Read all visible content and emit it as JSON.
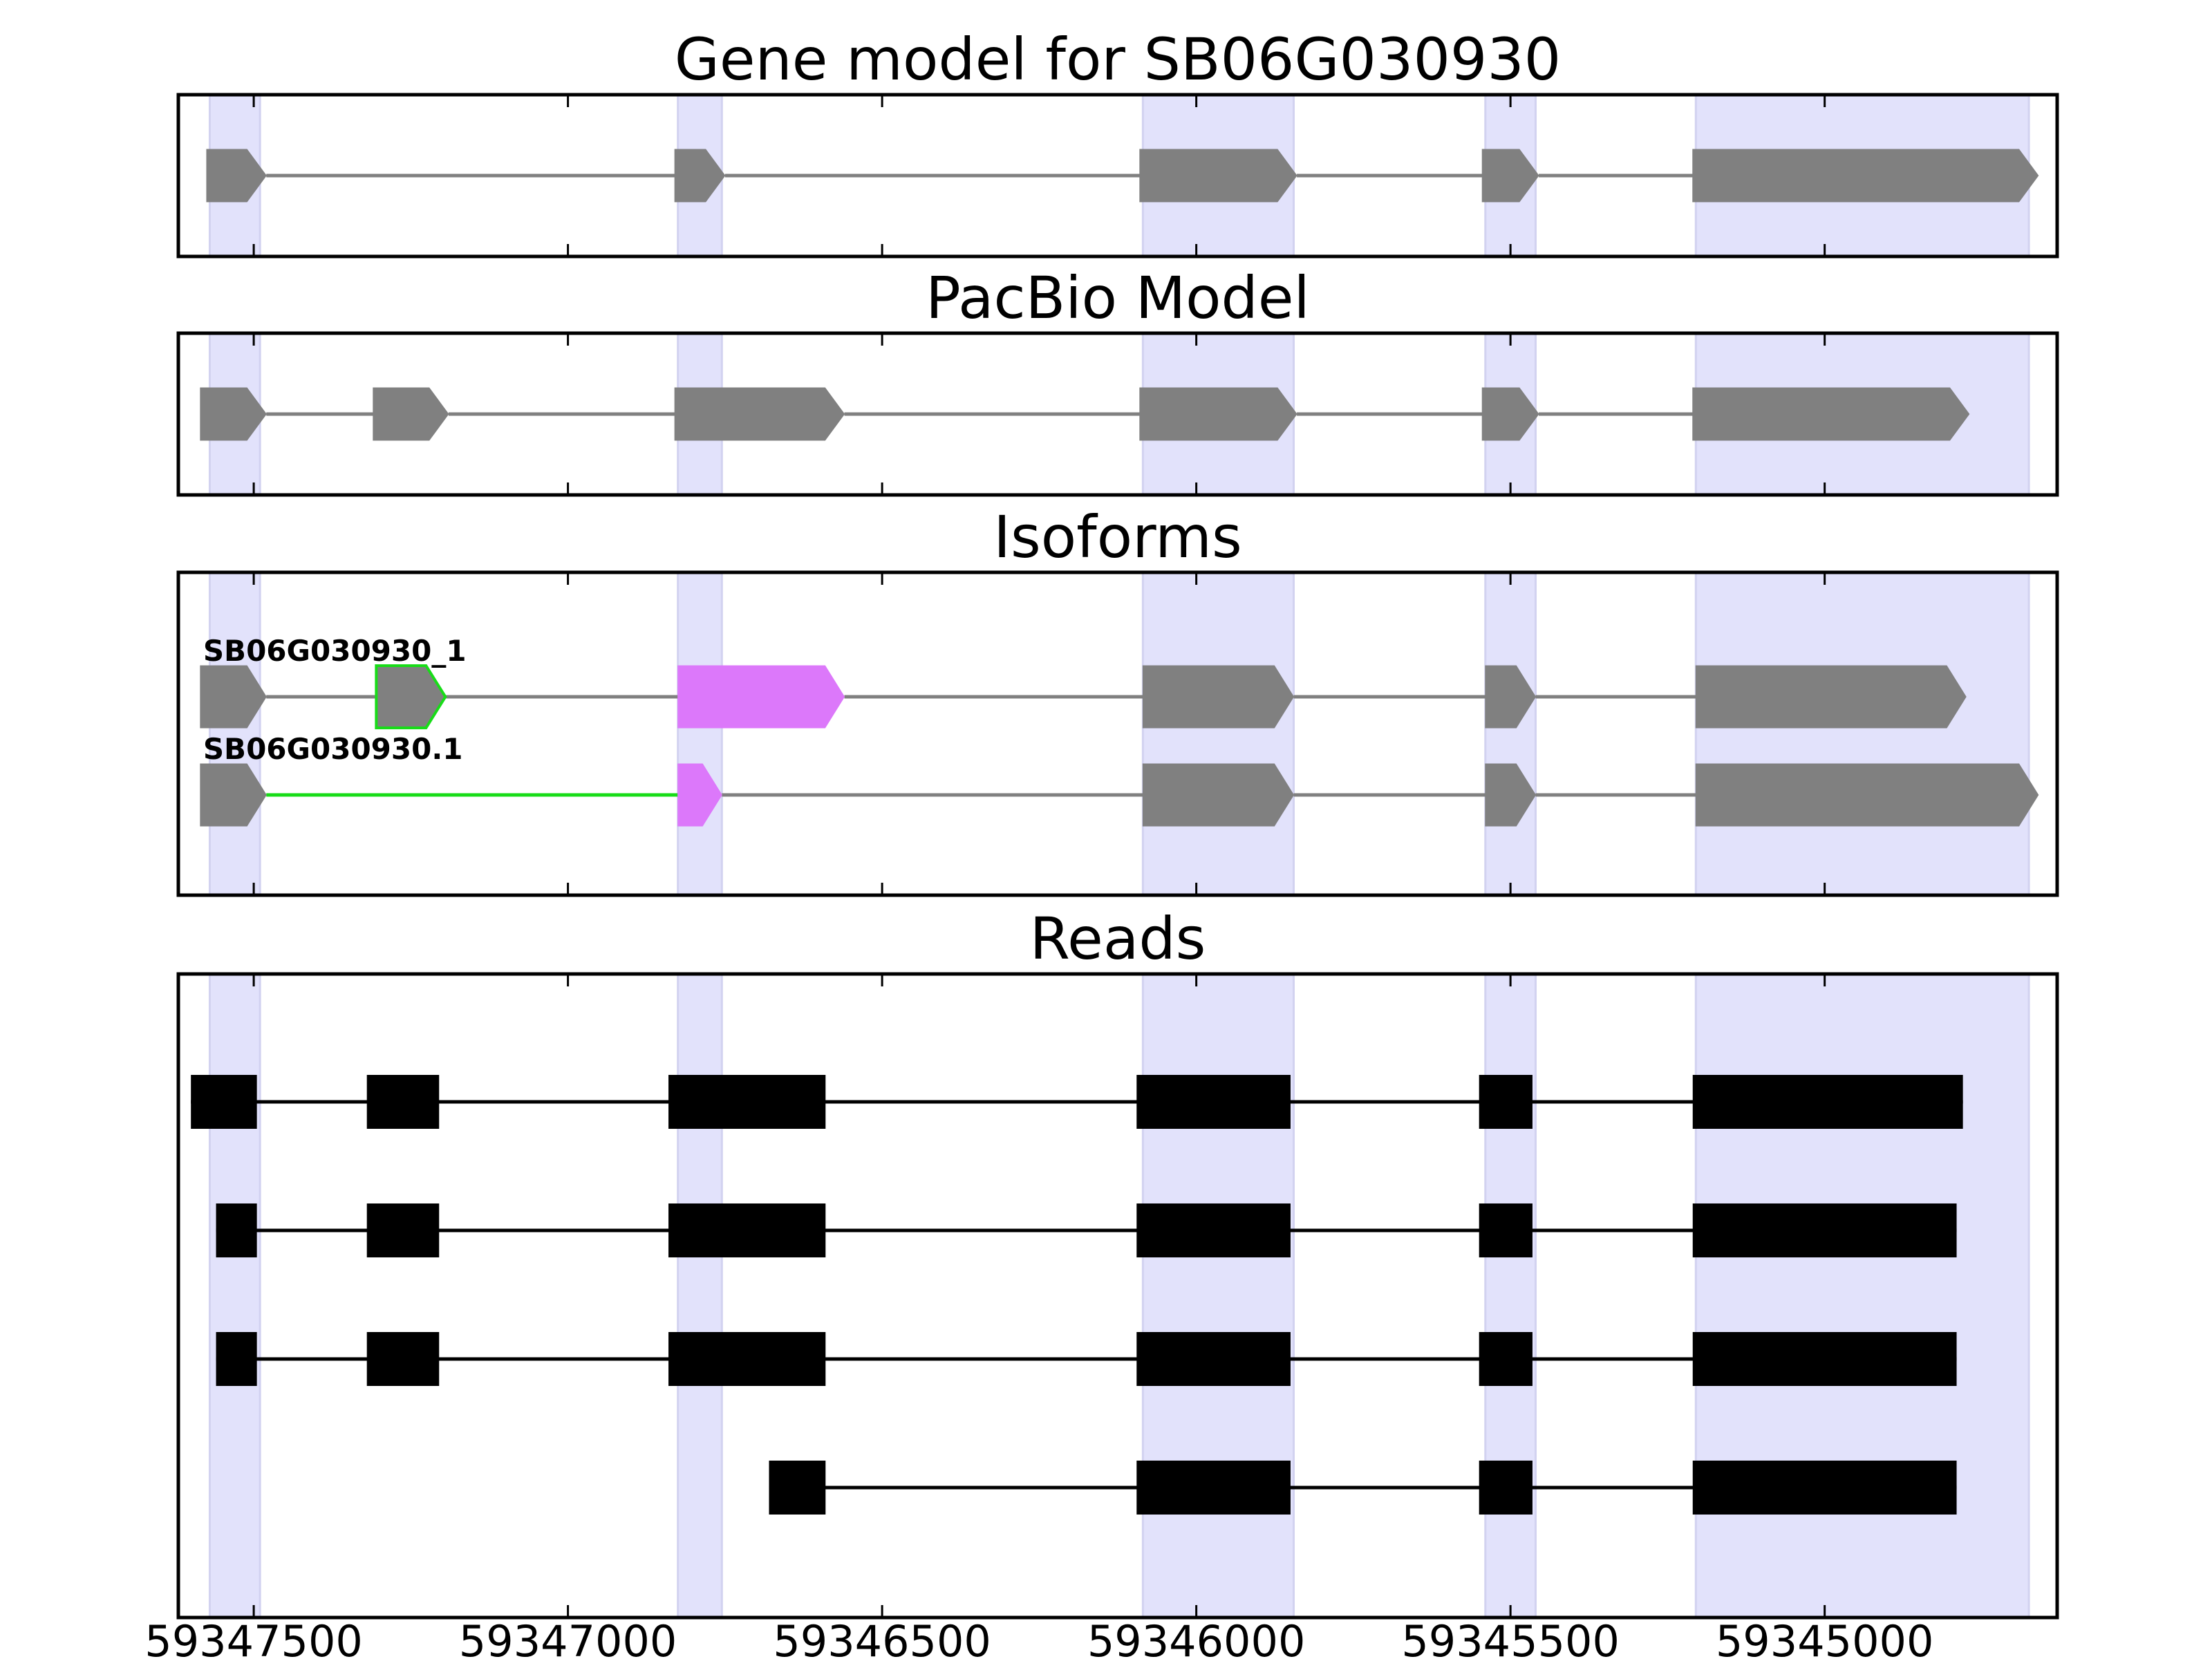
{
  "figure": {
    "x_ticks": [
      59347500,
      59347000,
      59346500,
      59346000,
      59345500,
      59345000
    ],
    "x_ticklabels": [
      "59347500",
      "59347000",
      "59346500",
      "59346000",
      "59345500",
      "59345000"
    ],
    "xlim": [
      59347620,
      59344630
    ],
    "colors": {
      "exon_fill": "#808080",
      "intron_line": "#808080",
      "highlight_band": "#e2e2fb",
      "unique_exon": "#dc78fa",
      "novel_outline": "#18dc18",
      "read_exon": "#000000",
      "read_line": "#000000"
    },
    "strand": "minus"
  },
  "chart_data": [
    {
      "type": "gene-track",
      "title": "Gene model for SB06G030930",
      "highlight_regions": [
        [
          59347570,
          59347490
        ],
        [
          59346825,
          59346755
        ],
        [
          59346085,
          59345845
        ],
        [
          59345540,
          59345460
        ],
        [
          59345205,
          59344675
        ]
      ],
      "transcripts": [
        {
          "label": "",
          "exons": [
            [
              59347575,
              59347480
            ],
            [
              59346830,
              59346750
            ],
            [
              59346090,
              59345840
            ],
            [
              59345545,
              59345455
            ],
            [
              59345210,
              59344660
            ]
          ]
        }
      ]
    },
    {
      "type": "gene-track",
      "title": "PacBio Model",
      "highlight_regions": [
        [
          59347570,
          59347490
        ],
        [
          59346825,
          59346755
        ],
        [
          59346085,
          59345845
        ],
        [
          59345540,
          59345460
        ],
        [
          59345205,
          59344675
        ]
      ],
      "transcripts": [
        {
          "label": "",
          "exons": [
            [
              59347585,
              59347480
            ],
            [
              59347310,
              59347190
            ],
            [
              59346830,
              59346560
            ],
            [
              59346090,
              59345840
            ],
            [
              59345545,
              59345455
            ],
            [
              59345210,
              59344770
            ]
          ]
        }
      ]
    },
    {
      "type": "gene-track",
      "title": "Isoforms",
      "highlight_regions": [
        [
          59347570,
          59347490
        ],
        [
          59346825,
          59346755
        ],
        [
          59346085,
          59345845
        ],
        [
          59345540,
          59345460
        ],
        [
          59345205,
          59344675
        ]
      ],
      "transcripts": [
        {
          "label": "SB06G030930_1",
          "exons": [
            [
              59347585,
              59347480
            ],
            [
              59347305,
              59347195
            ],
            [
              59346825,
              59346560
            ],
            [
              59346085,
              59345845
            ],
            [
              59345540,
              59345460
            ],
            [
              59345205,
              59344775
            ]
          ],
          "unique_exon": 2,
          "novel_exon": 1
        },
        {
          "label": "SB06G030930.1",
          "exons": [
            [
              59347585,
              59347480
            ],
            [
              59346825,
              59346755
            ],
            [
              59346085,
              59345845
            ],
            [
              59345540,
              59345460
            ],
            [
              59345205,
              59344660
            ]
          ],
          "unique_exon": 1,
          "novel_intron": 0
        }
      ]
    },
    {
      "type": "read-track",
      "title": "Reads",
      "highlight_regions": [
        [
          59347570,
          59347490
        ],
        [
          59346825,
          59346755
        ],
        [
          59346085,
          59345845
        ],
        [
          59345540,
          59345460
        ],
        [
          59345205,
          59344675
        ]
      ],
      "reads": [
        [
          [
            59347600,
            59347495
          ],
          [
            59347320,
            59347205
          ],
          [
            59346840,
            59346590
          ],
          [
            59346095,
            59345850
          ],
          [
            59345550,
            59345465
          ],
          [
            59345210,
            59344780
          ]
        ],
        [
          [
            59347560,
            59347495
          ],
          [
            59347320,
            59347205
          ],
          [
            59346840,
            59346590
          ],
          [
            59346095,
            59345850
          ],
          [
            59345550,
            59345465
          ],
          [
            59345210,
            59344790
          ]
        ],
        [
          [
            59347560,
            59347495
          ],
          [
            59347320,
            59347205
          ],
          [
            59346840,
            59346590
          ],
          [
            59346095,
            59345850
          ],
          [
            59345550,
            59345465
          ],
          [
            59345210,
            59344790
          ]
        ],
        [
          [
            59346680,
            59346590
          ],
          [
            59346095,
            59345850
          ],
          [
            59345550,
            59345465
          ],
          [
            59345210,
            59344790
          ]
        ]
      ]
    }
  ]
}
